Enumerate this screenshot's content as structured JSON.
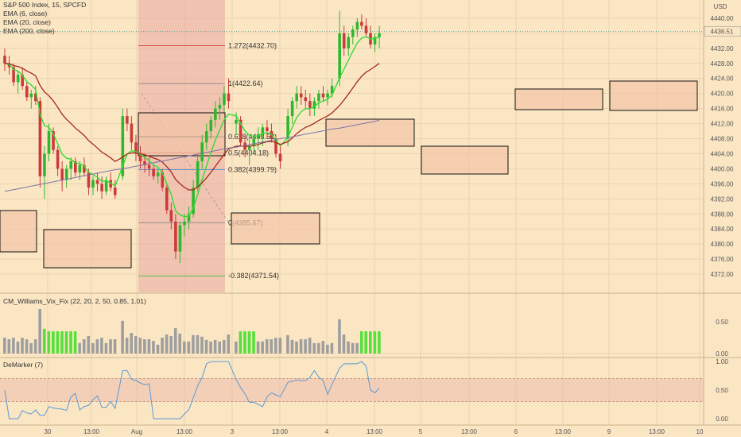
{
  "header": {
    "symbol": "S&P 500 Index, 15, SPCFD",
    "ema6": "EMA (6, close)",
    "ema20": "EMA (20, close)",
    "ema200": "EMA (200, close)"
  },
  "currency": "USD",
  "last_price_label": "4436.51",
  "colors": {
    "background": "#fbe6c4",
    "up": "#2eb82e",
    "down": "#cc3b3b",
    "ema6": "#33dd33",
    "ema20": "#a52a1c",
    "ema200": "#7d74a8",
    "vix_gray": "#9e9e9e",
    "vix_green": "#55e03a",
    "demarker": "#5b9bd5",
    "box_fill": "#f2c4a8",
    "fib_band": "#e8a8a0"
  },
  "price_axis": {
    "min": 4368,
    "max": 4444,
    "ticks": [
      4372,
      4376,
      4380,
      4384,
      4388,
      4392,
      4396,
      4400,
      4404,
      4408,
      4412,
      4416,
      4420,
      4424,
      4428,
      4432,
      4436,
      4440
    ]
  },
  "time_axis": {
    "labels": [
      "30",
      "13:00",
      "Aug",
      "13:00",
      "3",
      "13:00",
      "4",
      "13:00",
      "5",
      "13:00",
      "6",
      "13:00",
      "9",
      "13:00",
      "10"
    ]
  },
  "fib_labels": [
    {
      "text": "1.272(4432.70)",
      "color": "#cc2222"
    },
    {
      "text": "1(4422.64)",
      "color": "#888888"
    },
    {
      "text": "0.618(4408.52)",
      "color": "#222222"
    },
    {
      "text": "0.5(4404.18)",
      "color": "#cc2222"
    },
    {
      "text": "0.382(4399.79)",
      "color": "#4a90d9"
    },
    {
      "text": "0(4385.67)",
      "color": "#888888"
    },
    {
      "text": "-0.382(4371.54)",
      "color": "#2eb82e"
    }
  ],
  "vix": {
    "title": "CM_Williams_Vix_Fix (22, 20, 2, 50, 0.85, 1.01)",
    "ticks": [
      "0.50",
      "0.00"
    ]
  },
  "demarker": {
    "title": "DeMarker (7)",
    "ticks": [
      "1.00",
      "0.50",
      "0.00"
    ]
  },
  "chart_data": {
    "type": "candlestick",
    "series": [
      {
        "name": "EMA (6, close)"
      },
      {
        "name": "EMA (20, close)"
      },
      {
        "name": "EMA (200, close)"
      }
    ],
    "ylim": [
      4368,
      4444
    ],
    "candles": [
      [
        4430,
        4432,
        4426,
        4428
      ],
      [
        4428,
        4430,
        4425,
        4427
      ],
      [
        4427,
        4428,
        4422,
        4423
      ],
      [
        4423,
        4426,
        4420,
        4425
      ],
      [
        4425,
        4427,
        4421,
        4422
      ],
      [
        4422,
        4423,
        4418,
        4419
      ],
      [
        4419,
        4421,
        4416,
        4420
      ],
      [
        4420,
        4422,
        4417,
        4418
      ],
      [
        4418,
        4419,
        4395,
        4398
      ],
      [
        4398,
        4406,
        4392,
        4404
      ],
      [
        4404,
        4412,
        4402,
        4410
      ],
      [
        4410,
        4411,
        4404,
        4405
      ],
      [
        4405,
        4406,
        4398,
        4400
      ],
      [
        4400,
        4402,
        4394,
        4397
      ],
      [
        4397,
        4401,
        4395,
        4400
      ],
      [
        4400,
        4403,
        4397,
        4402
      ],
      [
        4402,
        4403,
        4398,
        4399
      ],
      [
        4399,
        4402,
        4397,
        4401
      ],
      [
        4401,
        4403,
        4398,
        4399
      ],
      [
        4399,
        4400,
        4393,
        4395
      ],
      [
        4395,
        4398,
        4393,
        4397
      ],
      [
        4397,
        4399,
        4394,
        4396
      ],
      [
        4396,
        4398,
        4392,
        4394
      ],
      [
        4394,
        4398,
        4393,
        4397
      ],
      [
        4397,
        4399,
        4394,
        4395
      ],
      [
        4395,
        4397,
        4392,
        4393
      ],
      [
        4398,
        4416,
        4397,
        4414
      ],
      [
        4414,
        4416,
        4410,
        4412
      ],
      [
        4412,
        4414,
        4405,
        4407
      ],
      [
        4407,
        4409,
        4402,
        4404
      ],
      [
        4404,
        4406,
        4400,
        4402
      ],
      [
        4402,
        4404,
        4399,
        4401
      ],
      [
        4401,
        4403,
        4398,
        4400
      ],
      [
        4400,
        4401,
        4397,
        4398
      ],
      [
        4398,
        4400,
        4396,
        4399
      ],
      [
        4399,
        4400,
        4394,
        4395
      ],
      [
        4395,
        4396,
        4388,
        4389
      ],
      [
        4389,
        4391,
        4384,
        4386
      ],
      [
        4386,
        4388,
        4376,
        4378
      ],
      [
        4378,
        4386,
        4375,
        4385
      ],
      [
        4385,
        4388,
        4382,
        4386
      ],
      [
        4386,
        4390,
        4384,
        4388
      ],
      [
        4388,
        4397,
        4387,
        4395
      ],
      [
        4395,
        4404,
        4394,
        4402
      ],
      [
        4402,
        4409,
        4400,
        4407
      ],
      [
        4407,
        4412,
        4405,
        4410
      ],
      [
        4410,
        4414,
        4408,
        4413
      ],
      [
        4413,
        4418,
        4411,
        4416
      ],
      [
        4416,
        4419,
        4413,
        4417
      ],
      [
        4417,
        4422,
        4415,
        4420
      ],
      [
        4420,
        4424,
        4416,
        4418
      ],
      [
        4412,
        4415,
        4409,
        4413
      ],
      [
        4413,
        4414,
        4406,
        4407
      ],
      [
        4407,
        4409,
        4403,
        4405
      ],
      [
        4405,
        4408,
        4401,
        4406
      ],
      [
        4406,
        4409,
        4404,
        4408
      ],
      [
        4408,
        4411,
        4405,
        4409
      ],
      [
        4409,
        4412,
        4406,
        4411
      ],
      [
        4411,
        4413,
        4408,
        4410
      ],
      [
        4410,
        4412,
        4407,
        4408
      ],
      [
        4408,
        4409,
        4403,
        4404
      ],
      [
        4404,
        4406,
        4400,
        4402
      ],
      [
        4408,
        4416,
        4406,
        4414
      ],
      [
        4414,
        4419,
        4412,
        4418
      ],
      [
        4418,
        4422,
        4416,
        4420
      ],
      [
        4420,
        4422,
        4417,
        4419
      ],
      [
        4419,
        4421,
        4416,
        4418
      ],
      [
        4418,
        4420,
        4414,
        4416
      ],
      [
        4416,
        4419,
        4414,
        4418
      ],
      [
        4418,
        4421,
        4416,
        4420
      ],
      [
        4420,
        4422,
        4418,
        4419
      ],
      [
        4419,
        4421,
        4417,
        4420
      ],
      [
        4420,
        4424,
        4419,
        4422
      ],
      [
        4424,
        4442,
        4422,
        4436
      ],
      [
        4436,
        4438,
        4430,
        4432
      ],
      [
        4432,
        4436,
        4430,
        4435
      ],
      [
        4435,
        4438,
        4433,
        4437
      ],
      [
        4437,
        4440,
        4435,
        4439
      ],
      [
        4439,
        4441,
        4437,
        4438
      ],
      [
        4438,
        4440,
        4435,
        4436
      ],
      [
        4436,
        4438,
        4432,
        4433
      ],
      [
        4433,
        4436,
        4431,
        4435
      ],
      [
        4435,
        4438,
        4432,
        4436
      ]
    ]
  }
}
